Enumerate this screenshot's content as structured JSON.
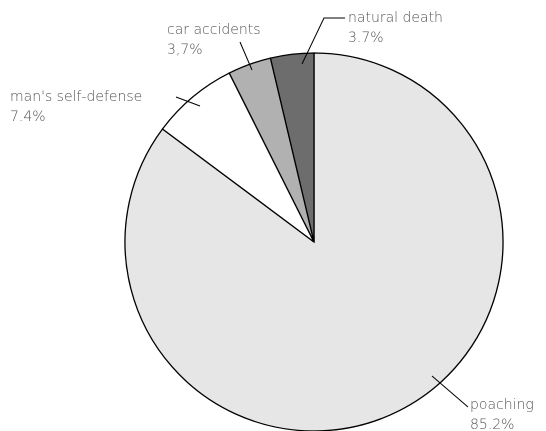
{
  "chart_data": {
    "type": "pie",
    "categories": [
      "poaching",
      "man's self-defense",
      "car accidents",
      "natural death"
    ],
    "values": [
      85.2,
      7.4,
      3.7,
      3.7
    ],
    "value_labels": [
      "85.2%",
      "7.4%",
      "3,7%",
      "3.7%"
    ],
    "colors": [
      "#e6e6e6",
      "#ffffff",
      "#b1b1b1",
      "#6d6d6d"
    ]
  }
}
